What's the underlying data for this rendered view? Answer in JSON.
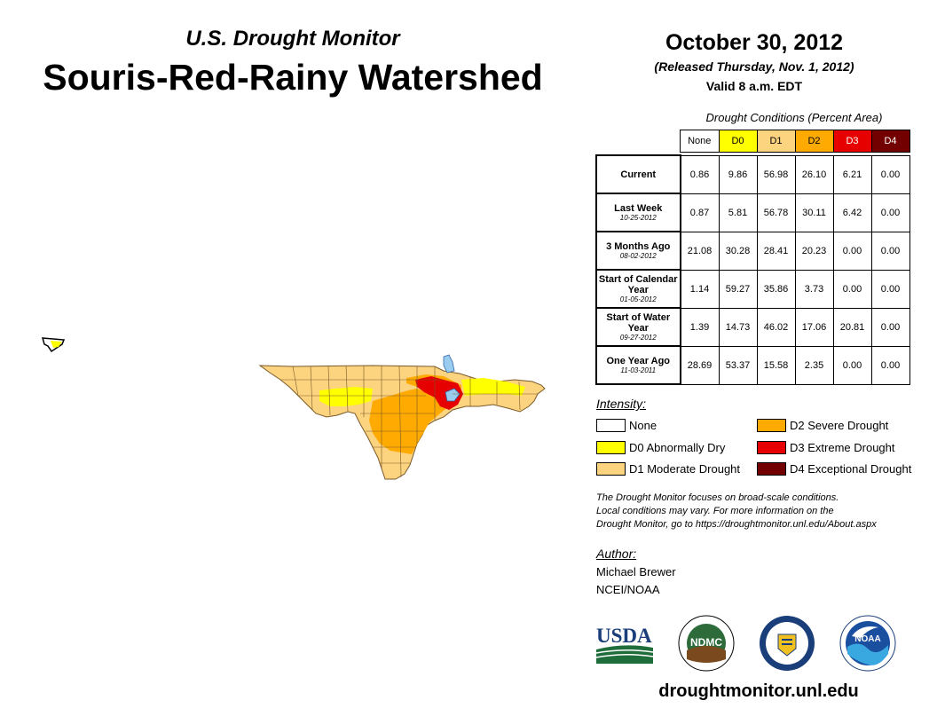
{
  "header": {
    "subtitle": "U.S. Drought Monitor",
    "title": "Souris-Red-Rainy Watershed",
    "date": "October 30, 2012",
    "released": "(Released Thursday, Nov. 1, 2012)",
    "valid": "Valid 8 a.m. EDT"
  },
  "table": {
    "caption": "Drought Conditions (Percent Area)",
    "columns": [
      "None",
      "D0",
      "D1",
      "D2",
      "D3",
      "D4"
    ],
    "column_colors": [
      "#ffffff",
      "#ffff00",
      "#fcd37f",
      "#ffaa00",
      "#e60000",
      "#730000"
    ],
    "rows": [
      {
        "label": "Current",
        "date": "",
        "values": [
          "0.86",
          "9.86",
          "56.98",
          "26.10",
          "6.21",
          "0.00"
        ]
      },
      {
        "label": "Last Week",
        "date": "10-25-2012",
        "values": [
          "0.87",
          "5.81",
          "56.78",
          "30.11",
          "6.42",
          "0.00"
        ]
      },
      {
        "label": "3 Months Ago",
        "date": "08-02-2012",
        "values": [
          "21.08",
          "30.28",
          "28.41",
          "20.23",
          "0.00",
          "0.00"
        ]
      },
      {
        "label": "Start of Calendar Year",
        "date": "01-05-2012",
        "values": [
          "1.14",
          "59.27",
          "35.86",
          "3.73",
          "0.00",
          "0.00"
        ]
      },
      {
        "label": "Start of Water Year",
        "date": "09-27-2012",
        "values": [
          "1.39",
          "14.73",
          "46.02",
          "17.06",
          "20.81",
          "0.00"
        ]
      },
      {
        "label": "One Year Ago",
        "date": "11-03-2011",
        "values": [
          "28.69",
          "53.37",
          "15.58",
          "2.35",
          "0.00",
          "0.00"
        ]
      }
    ]
  },
  "legend": {
    "heading": "Intensity:",
    "items": [
      {
        "label": "None",
        "color": "#ffffff"
      },
      {
        "label": "D0 Abnormally Dry",
        "color": "#ffff00"
      },
      {
        "label": "D1 Moderate Drought",
        "color": "#fcd37f"
      },
      {
        "label": "D2 Severe Drought",
        "color": "#ffaa00"
      },
      {
        "label": "D3 Extreme Drought",
        "color": "#e60000"
      },
      {
        "label": "D4 Exceptional Drought",
        "color": "#730000"
      }
    ]
  },
  "note": {
    "line1": "The Drought Monitor focuses on broad-scale conditions.",
    "line2": "Local conditions may vary. For more information on the",
    "line3": "Drought Monitor, go to https://droughtmonitor.unl.edu/About.aspx"
  },
  "author": {
    "heading": "Author:",
    "name": "Michael Brewer",
    "org": "NCEI/NOAA"
  },
  "logos": {
    "usda": "USDA",
    "ndmc": "NDMC",
    "noaa": "NOAA"
  },
  "website": "droughtmonitor.unl.edu"
}
